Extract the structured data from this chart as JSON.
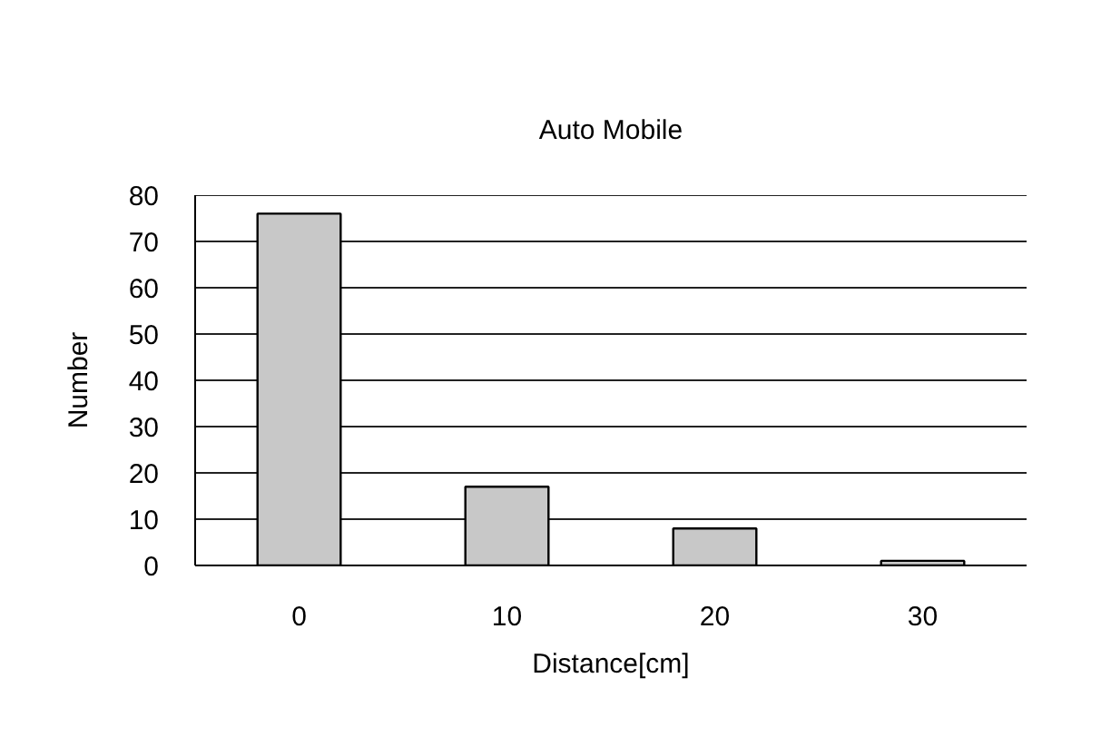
{
  "chart_data": {
    "type": "bar",
    "title": "Auto Mobile",
    "xlabel": "Distance[cm]",
    "ylabel": "Number",
    "categories": [
      "0",
      "10",
      "20",
      "30"
    ],
    "values": [
      76,
      17,
      8,
      1
    ],
    "color": "#c8c8c8",
    "ylim": [
      0,
      80
    ],
    "yticks": [
      0,
      10,
      20,
      30,
      40,
      50,
      60,
      70,
      80
    ],
    "grid": "y"
  }
}
